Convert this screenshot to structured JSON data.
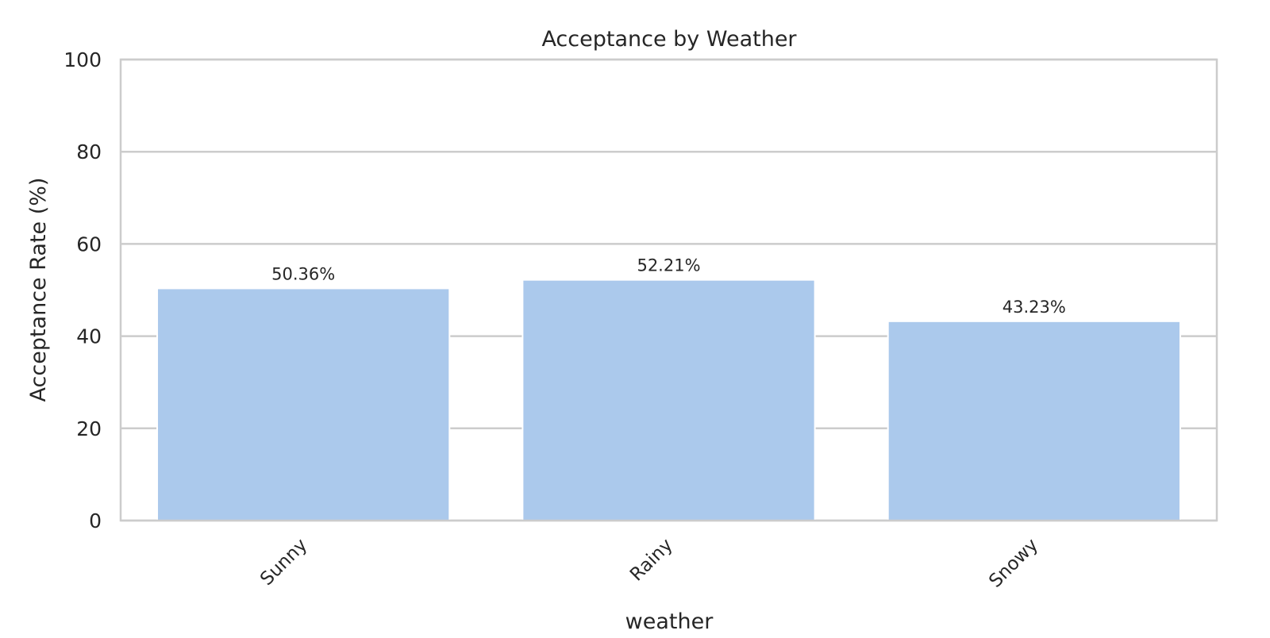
{
  "chart_data": {
    "type": "bar",
    "title": "Acceptance by Weather",
    "xlabel": "weather",
    "ylabel": "Acceptance Rate (%)",
    "categories": [
      "Sunny",
      "Rainy",
      "Snowy"
    ],
    "values": [
      50.36,
      52.21,
      43.23
    ],
    "data_labels": [
      "50.36%",
      "52.21%",
      "43.23%"
    ],
    "ylim": [
      0,
      100
    ],
    "yticks": [
      0,
      20,
      40,
      60,
      80,
      100
    ],
    "ytick_labels": [
      "0",
      "20",
      "40",
      "60",
      "80",
      "100"
    ],
    "grid": "horizontal",
    "bar_color": "#abc9ec",
    "grid_color": "#cccccc",
    "axis_color": "#cccccc",
    "text_color": "#262626"
  }
}
